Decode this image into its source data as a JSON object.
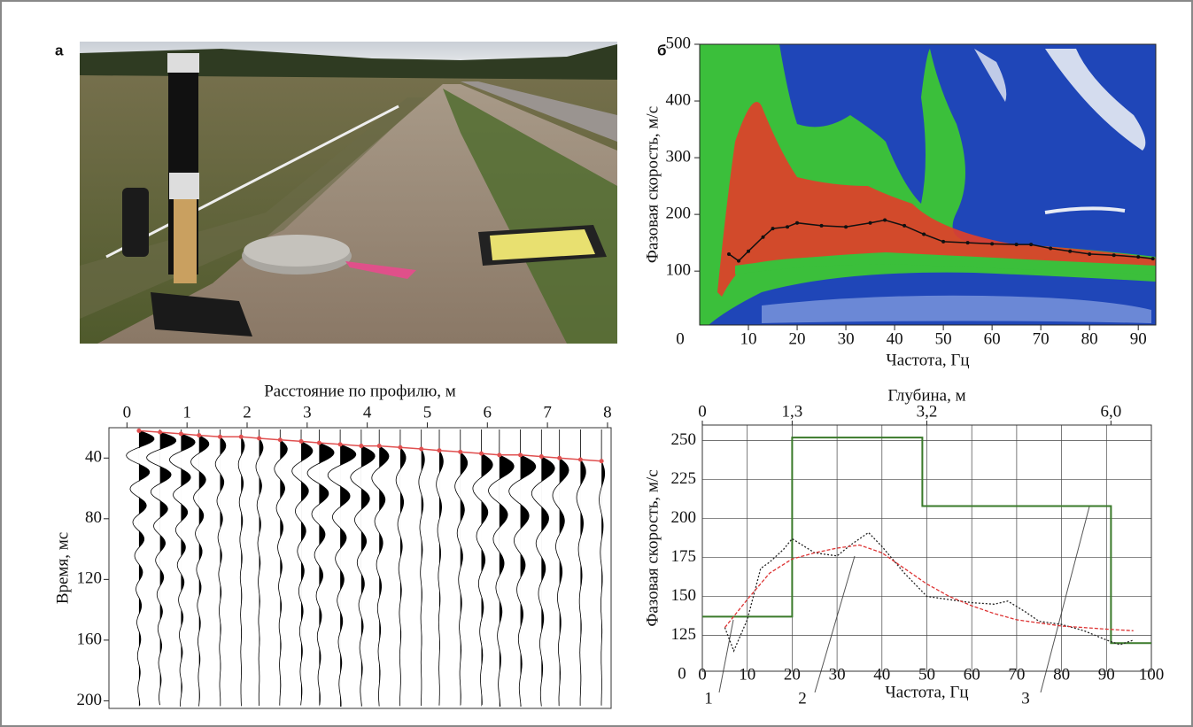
{
  "photo": {
    "panel_label": "а"
  },
  "chart_data": [
    {
      "type": "dispersion-image",
      "panel_label": "б",
      "xlabel": "Частота, Гц",
      "ylabel": "Фазовая скорость, м/с",
      "origin_label": "0",
      "xlim": [
        0,
        93.6
      ],
      "ylim": [
        5,
        500
      ],
      "xticks": [
        10,
        20,
        30,
        40,
        50,
        60,
        70,
        80,
        90
      ],
      "yticks": [
        100,
        200,
        300,
        400,
        500
      ],
      "series": [
        {
          "color": "#111111",
          "x": [
            6,
            8,
            10,
            13,
            15,
            18,
            20,
            25,
            30,
            35,
            38,
            42,
            46,
            50,
            55,
            60,
            65,
            68,
            72,
            76,
            80,
            85,
            90,
            93
          ],
          "values": [
            130,
            118,
            135,
            160,
            175,
            178,
            185,
            180,
            178,
            185,
            190,
            180,
            165,
            152,
            150,
            148,
            147,
            147,
            140,
            135,
            130,
            128,
            125,
            122
          ]
        }
      ]
    },
    {
      "type": "seismogram",
      "xlabel": "Расстояние по профилю, м",
      "ylabel": "Время, мс",
      "xlim": [
        -0.3,
        8.06
      ],
      "ylim": [
        20,
        205
      ],
      "y_inverted": true,
      "xticks": [
        0,
        1,
        2,
        3,
        4,
        5,
        6,
        7,
        8
      ],
      "yticks": [
        40,
        80,
        120,
        160,
        200
      ],
      "series": [
        {
          "color": "#e05050",
          "x": [
            0.2,
            0.55,
            0.9,
            1.2,
            1.55,
            1.9,
            2.2,
            2.55,
            2.9,
            3.2,
            3.55,
            3.9,
            4.2,
            4.55,
            4.9,
            5.2,
            5.55,
            5.9,
            6.2,
            6.55,
            6.9,
            7.2,
            7.55,
            7.9
          ],
          "values": [
            22,
            23,
            24,
            25,
            26,
            26,
            27,
            28,
            29,
            30,
            31,
            32,
            32,
            33,
            34,
            35,
            36,
            37,
            38,
            38,
            39,
            40,
            41,
            42
          ]
        }
      ]
    },
    {
      "type": "line",
      "xlabel": "Частота, Гц",
      "ylabel": "Фазовая скорость, м/с",
      "origin_label": "0",
      "xlim": [
        0,
        100
      ],
      "ylim": [
        102,
        260
      ],
      "xticks": [
        0,
        10,
        20,
        30,
        40,
        50,
        60,
        70,
        80,
        90,
        100
      ],
      "yticks": [
        125,
        150,
        175,
        200,
        225,
        250
      ],
      "grid": true,
      "top_axis": {
        "label": "Глубина, м",
        "ticks": [
          {
            "value": 0,
            "label": "0",
            "frequency": 0
          },
          {
            "value": 1.3,
            "label": "1,3",
            "frequency": 20
          },
          {
            "value": 3.2,
            "label": "3,2",
            "frequency": 50
          },
          {
            "value": 6.0,
            "label": "6,0",
            "frequency": 91
          }
        ]
      },
      "series": [
        {
          "color": "#3a7a2a",
          "style": "step",
          "x": [
            0,
            20,
            20,
            49,
            49,
            91,
            91,
            100
          ],
          "values": [
            137,
            137,
            252,
            252,
            208,
            208,
            120,
            120
          ]
        },
        {
          "color": "#222222",
          "style": "dotted",
          "x": [
            5,
            7,
            10,
            13,
            15,
            18,
            20,
            25,
            30,
            33,
            37,
            40,
            45,
            50,
            55,
            60,
            65,
            68,
            72,
            75,
            80,
            85,
            90,
            93,
            96
          ],
          "values": [
            130,
            115,
            135,
            168,
            172,
            180,
            187,
            178,
            176,
            183,
            191,
            182,
            165,
            150,
            148,
            146,
            145,
            147,
            140,
            134,
            132,
            128,
            122,
            119,
            122
          ]
        },
        {
          "color": "#dd3333",
          "style": "dashed",
          "x": [
            5,
            10,
            15,
            20,
            25,
            30,
            35,
            40,
            45,
            50,
            55,
            60,
            65,
            70,
            75,
            80,
            85,
            90,
            96
          ],
          "values": [
            130,
            148,
            165,
            174,
            178,
            181,
            183,
            178,
            168,
            158,
            150,
            144,
            139,
            135,
            133,
            131,
            130,
            129,
            128
          ]
        }
      ],
      "callouts": [
        "1",
        "2",
        "3"
      ]
    }
  ]
}
